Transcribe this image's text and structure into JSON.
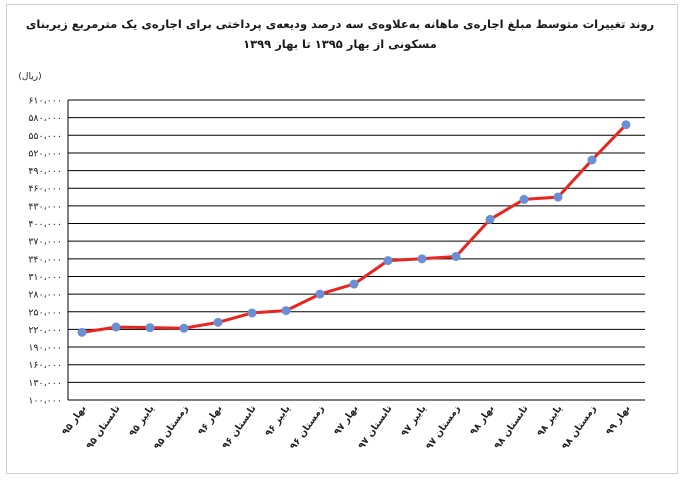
{
  "chart_data": {
    "type": "line",
    "title": "روند تغییرات متوسط مبلغ اجاره‌ی ماهانه به‌علاوه‌ی سه درصد ودیعه‌ی پرداختی برای اجاره‌ی یک مترمربع زیربنای",
    "subtitle": "مسکونی از بهار ۱۳۹۵ تا بهار ۱۳۹۹",
    "ylabel": "(ریال)",
    "xlabel": "",
    "ylim": [
      100000,
      610000
    ],
    "yticks": [
      100000,
      130000,
      160000,
      190000,
      220000,
      250000,
      280000,
      310000,
      340000,
      370000,
      400000,
      430000,
      460000,
      490000,
      520000,
      550000,
      580000,
      610000
    ],
    "ytick_labels": [
      "۱۰۰،۰۰۰",
      "۱۳۰،۰۰۰",
      "۱۶۰،۰۰۰",
      "۱۹۰،۰۰۰",
      "۲۲۰،۰۰۰",
      "۲۵۰،۰۰۰",
      "۲۸۰،۰۰۰",
      "۳۱۰،۰۰۰",
      "۳۴۰،۰۰۰",
      "۳۷۰،۰۰۰",
      "۴۰۰،۰۰۰",
      "۴۳۰،۰۰۰",
      "۴۶۰،۰۰۰",
      "۴۹۰،۰۰۰",
      "۵۲۰،۰۰۰",
      "۵۵۰،۰۰۰",
      "۵۸۰،۰۰۰",
      "۶۱۰،۰۰۰"
    ],
    "categories": [
      "بهار ۹۵",
      "تابستان ۹۵",
      "پاییز ۹۵",
      "زمستان ۹۵",
      "بهار ۹۶",
      "تابستان ۹۶",
      "پاییز ۹۶",
      "زمستان ۹۶",
      "بهار ۹۷",
      "تابستان ۹۷",
      "پاییز ۹۷",
      "زمستان ۹۷",
      "بهار ۹۸",
      "تابستان ۹۸",
      "پاییز ۹۸",
      "زمستان ۹۸",
      "بهار ۹۹"
    ],
    "series": [
      {
        "values": [
          215000,
          224000,
          223000,
          222000,
          232000,
          248000,
          252000,
          280000,
          297000,
          337000,
          340000,
          344000,
          407000,
          441000,
          445000,
          508000,
          568000
        ]
      }
    ],
    "grid": true,
    "legend": "none",
    "colors": {
      "line": "#e8261f",
      "marker": "#6b8fd4",
      "grid": "#000000",
      "text": "#222222"
    }
  }
}
